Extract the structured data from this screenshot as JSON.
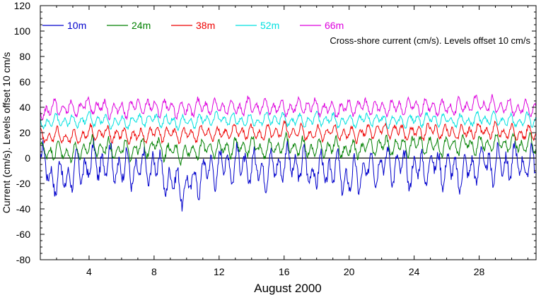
{
  "chart_data": {
    "type": "line",
    "title": "",
    "annotation": "Cross-shore current (cm/s). Levels offset 10 cm/s",
    "xlabel": "August 2000",
    "ylabel": "Current (cm/s). Levels offset 10 cm/s",
    "xlim": [
      1,
      31.5
    ],
    "ylim": [
      -80,
      120
    ],
    "xticks": [
      4,
      8,
      12,
      16,
      20,
      24,
      28
    ],
    "yticks": [
      -80,
      -60,
      -40,
      -20,
      0,
      20,
      40,
      60,
      80,
      100,
      120
    ],
    "zero_line": true,
    "grid": false,
    "legend_position": "top-left",
    "series": [
      {
        "name": "10m",
        "color": "#0000cc",
        "offset": 0,
        "amplitude": 10,
        "base": -5,
        "x": [
          1,
          2,
          3,
          4,
          5,
          6,
          7,
          8,
          9,
          10,
          11,
          12,
          13,
          14,
          15,
          16,
          17,
          18,
          19,
          20,
          21,
          22,
          23,
          24,
          25,
          26,
          27,
          28,
          29,
          30,
          31
        ],
        "y": [
          -2,
          -18,
          -12,
          -5,
          -3,
          -8,
          -10,
          -5,
          -18,
          -24,
          -12,
          -6,
          -4,
          -8,
          -10,
          -3,
          -6,
          -12,
          -8,
          -18,
          -10,
          -4,
          -6,
          -10,
          -5,
          -8,
          -12,
          -4,
          -6,
          -3,
          -5
        ]
      },
      {
        "name": "24m",
        "color": "#008000",
        "offset": 10,
        "amplitude": 5,
        "base": 8,
        "x": [
          1,
          2,
          3,
          4,
          5,
          6,
          7,
          8,
          9,
          10,
          11,
          12,
          13,
          14,
          15,
          16,
          17,
          18,
          19,
          20,
          21,
          22,
          23,
          24,
          25,
          26,
          27,
          28,
          29,
          30,
          31
        ],
        "y": [
          5,
          6,
          3,
          9,
          8,
          6,
          7,
          10,
          5,
          4,
          8,
          7,
          9,
          10,
          6,
          11,
          8,
          7,
          9,
          6,
          8,
          10,
          9,
          11,
          10,
          9,
          11,
          10,
          12,
          11,
          10
        ]
      },
      {
        "name": "38m",
        "color": "#ee0000",
        "offset": 20,
        "amplitude": 4,
        "base": 19,
        "x": [
          1,
          2,
          3,
          4,
          5,
          6,
          7,
          8,
          9,
          10,
          11,
          12,
          13,
          14,
          15,
          16,
          17,
          18,
          19,
          20,
          21,
          22,
          23,
          24,
          25,
          26,
          27,
          28,
          29,
          30,
          31
        ],
        "y": [
          16,
          18,
          15,
          20,
          19,
          18,
          17,
          20,
          19,
          18,
          20,
          19,
          21,
          20,
          19,
          22,
          20,
          19,
          21,
          18,
          20,
          22,
          21,
          20,
          22,
          21,
          20,
          22,
          21,
          20,
          19
        ]
      },
      {
        "name": "52m",
        "color": "#00e0e0",
        "offset": 30,
        "amplitude": 3.5,
        "base": 29,
        "x": [
          1,
          2,
          3,
          4,
          5,
          6,
          7,
          8,
          9,
          10,
          11,
          12,
          13,
          14,
          15,
          16,
          17,
          18,
          19,
          20,
          21,
          22,
          23,
          24,
          25,
          26,
          27,
          28,
          29,
          30,
          31
        ],
        "y": [
          27,
          30,
          28,
          31,
          29,
          28,
          30,
          31,
          29,
          28,
          30,
          31,
          30,
          29,
          31,
          30,
          29,
          31,
          30,
          29,
          31,
          30,
          29,
          30,
          31,
          30,
          29,
          31,
          30,
          29,
          30
        ]
      },
      {
        "name": "66m",
        "color": "#dd00dd",
        "offset": 40,
        "amplitude": 4.5,
        "base": 38,
        "x": [
          1,
          2,
          3,
          4,
          5,
          6,
          7,
          8,
          9,
          10,
          11,
          12,
          13,
          14,
          15,
          16,
          17,
          18,
          19,
          20,
          21,
          22,
          23,
          24,
          25,
          26,
          27,
          28,
          29,
          30,
          31
        ],
        "y": [
          36,
          40,
          38,
          42,
          39,
          38,
          41,
          40,
          39,
          38,
          41,
          40,
          39,
          41,
          40,
          39,
          41,
          40,
          38,
          40,
          41,
          39,
          40,
          41,
          40,
          39,
          41,
          42,
          41,
          40,
          39
        ]
      }
    ]
  }
}
